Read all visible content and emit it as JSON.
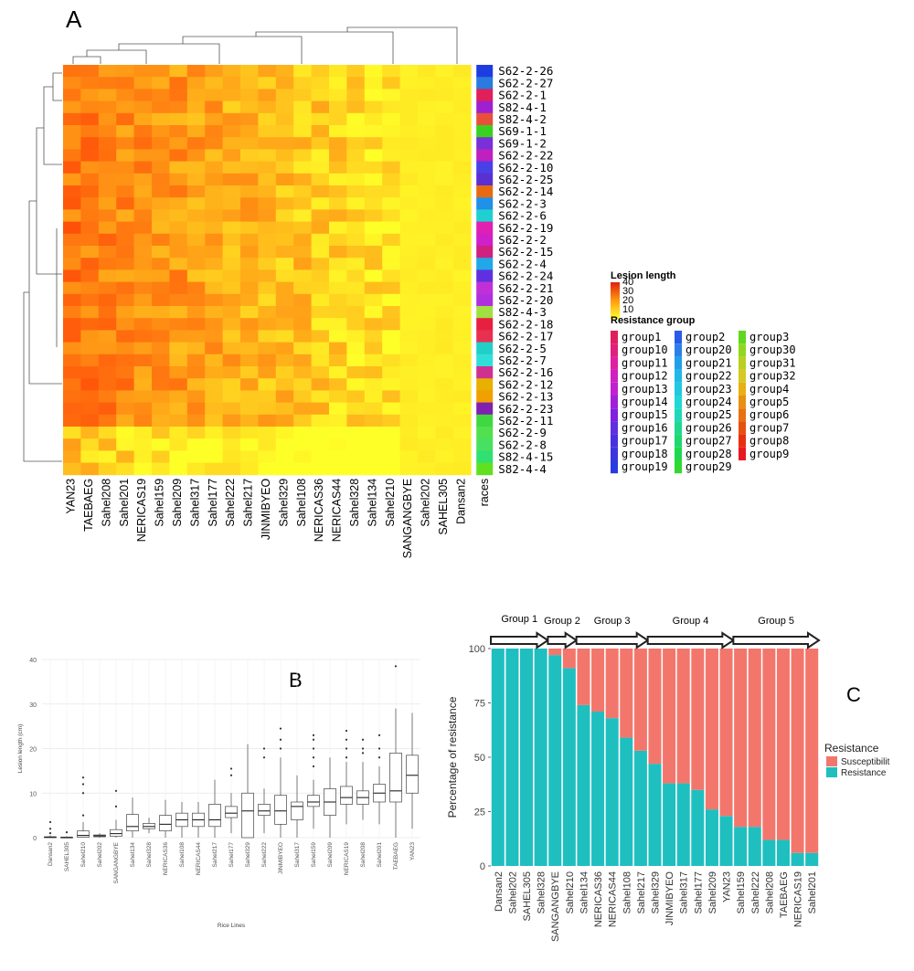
{
  "panels": {
    "a_label": "A",
    "b_label": "B",
    "c_label": "C"
  },
  "chart_data": [
    {
      "type": "heatmap",
      "panel": "A",
      "x_categories": [
        "YAN23",
        "TAEBAEG",
        "Sahel208",
        "Sahel201",
        "NERICAS19",
        "Sahel159",
        "Sahel209",
        "Sahel317",
        "Sahel177",
        "Sahel222",
        "Sahel217",
        "JINMIBYEO",
        "Sahel329",
        "Sahel108",
        "NERICAS36",
        "NERICAS44",
        "Sahel328",
        "Sahel134",
        "Sahel210",
        "SANGANGBYE",
        "Sahel202",
        "SAHEL305",
        "Dansan2"
      ],
      "extra_column_label": "races",
      "y_categories": [
        "S62-2-26",
        "S62-2-27",
        "S62-2-1",
        "S82-4-1",
        "S82-4-2",
        "S69-1-1",
        "S69-1-2",
        "S62-2-22",
        "S62-2-10",
        "S62-2-25",
        "S62-2-14",
        "S62-2-3",
        "S62-2-6",
        "S62-2-19",
        "S62-2-2",
        "S62-2-15",
        "S62-2-4",
        "S62-2-24",
        "S62-2-21",
        "S62-2-20",
        "S82-4-3",
        "S62-2-18",
        "S62-2-17",
        "S62-2-5",
        "S62-2-7",
        "S62-2-16",
        "S62-2-12",
        "S62-2-13",
        "S62-2-23",
        "S62-2-11",
        "S62-2-9",
        "S62-2-8",
        "S82-4-15",
        "S82-4-4"
      ],
      "race_colors": [
        "#1d3de0",
        "#2a7be0",
        "#e0205a",
        "#a020d0",
        "#e8503a",
        "#3ad020",
        "#7a30d8",
        "#c020c0",
        "#4a40e8",
        "#5a30d0",
        "#e86a10",
        "#2090e8",
        "#20d0d0",
        "#e020b0",
        "#d020c8",
        "#d02080",
        "#20a8e8",
        "#6030e0",
        "#c030d8",
        "#b030e0",
        "#a0e040",
        "#e82040",
        "#e83050",
        "#20d0c8",
        "#30e0d8",
        "#d03090",
        "#e8b000",
        "#f0a000",
        "#8020b0",
        "#40d840",
        "#50e050",
        "#48e060",
        "#30e070",
        "#60e020"
      ],
      "legend": {
        "lesion_title": "Lesion length",
        "lesion_ticks": [
          "40",
          "30",
          "20",
          "10"
        ],
        "group_title": "Resistance group",
        "groups": [
          {
            "name": "group1",
            "color": "#e0205a"
          },
          {
            "name": "group10",
            "color": "#e0207a"
          },
          {
            "name": "group11",
            "color": "#e020a0"
          },
          {
            "name": "group12",
            "color": "#d020c0"
          },
          {
            "name": "group13",
            "color": "#c020d0"
          },
          {
            "name": "group14",
            "color": "#a020d8"
          },
          {
            "name": "group15",
            "color": "#8020e0"
          },
          {
            "name": "group16",
            "color": "#6030e0"
          },
          {
            "name": "group17",
            "color": "#4a30e0"
          },
          {
            "name": "group18",
            "color": "#3a35e0"
          },
          {
            "name": "group19",
            "color": "#2a3ae0"
          },
          {
            "name": "group2",
            "color": "#2a5ae8"
          },
          {
            "name": "group20",
            "color": "#2a80e8"
          },
          {
            "name": "group21",
            "color": "#20a0e8"
          },
          {
            "name": "group22",
            "color": "#20b8e8"
          },
          {
            "name": "group23",
            "color": "#20c8e0"
          },
          {
            "name": "group24",
            "color": "#20d8d8"
          },
          {
            "name": "group25",
            "color": "#20d8b8"
          },
          {
            "name": "group26",
            "color": "#20d890"
          },
          {
            "name": "group27",
            "color": "#20d870"
          },
          {
            "name": "group28",
            "color": "#20d850"
          },
          {
            "name": "group29",
            "color": "#30d830"
          },
          {
            "name": "group3",
            "color": "#60d820"
          },
          {
            "name": "group30",
            "color": "#90d820"
          },
          {
            "name": "group31",
            "color": "#b8d020"
          },
          {
            "name": "group32",
            "color": "#d8c820"
          },
          {
            "name": "group4",
            "color": "#e8b010"
          },
          {
            "name": "group5",
            "color": "#e89010"
          },
          {
            "name": "group6",
            "color": "#e87010"
          },
          {
            "name": "group7",
            "color": "#e85010"
          },
          {
            "name": "group8",
            "color": "#e83010"
          },
          {
            "name": "group9",
            "color": "#e81a20"
          }
        ]
      }
    },
    {
      "type": "box",
      "panel": "B",
      "xlabel": "Rice Lines",
      "ylabel": "Lesion length (cm)",
      "ylim": [
        0,
        40
      ],
      "yticks": [
        0,
        10,
        20,
        30,
        40
      ],
      "categories": [
        "Dansan2",
        "SAHEL305",
        "Sahel210",
        "Sahel202",
        "SANGANGBYE",
        "Sahel134",
        "Sahel328",
        "NERICAS36",
        "Sahel108",
        "NERICAS44",
        "Sahel217",
        "Sahel177",
        "Sahel329",
        "Sahel222",
        "JINMIBYEO",
        "Sahel317",
        "Sahel159",
        "Sahel209",
        "NERICAS19",
        "Sahel208",
        "Sahel201",
        "TAEBAEG",
        "YAN23"
      ],
      "boxes": [
        {
          "q1": 0,
          "median": 0.1,
          "q3": 0.2,
          "wlo": 0,
          "whi": 0.5,
          "out": [
            1,
            2,
            3.5
          ]
        },
        {
          "q1": 0,
          "median": 0.05,
          "q3": 0.1,
          "wlo": 0,
          "whi": 0.3,
          "out": [
            1.2
          ]
        },
        {
          "q1": 0.1,
          "median": 0.5,
          "q3": 1.5,
          "wlo": 0,
          "whi": 3.5,
          "out": [
            5,
            10,
            12,
            13.5
          ]
        },
        {
          "q1": 0.2,
          "median": 0.4,
          "q3": 0.6,
          "wlo": 0,
          "whi": 1,
          "out": []
        },
        {
          "q1": 0.3,
          "median": 0.9,
          "q3": 1.8,
          "wlo": 0,
          "whi": 4,
          "out": [
            7,
            10.5
          ]
        },
        {
          "q1": 1.5,
          "median": 2.5,
          "q3": 5.2,
          "wlo": 0,
          "whi": 9,
          "out": []
        },
        {
          "q1": 2,
          "median": 2.5,
          "q3": 3.2,
          "wlo": 1,
          "whi": 4.5,
          "out": []
        },
        {
          "q1": 1.5,
          "median": 3,
          "q3": 5,
          "wlo": 0,
          "whi": 8.5,
          "out": []
        },
        {
          "q1": 2.5,
          "median": 4,
          "q3": 5.5,
          "wlo": 0,
          "whi": 8,
          "out": []
        },
        {
          "q1": 2.5,
          "median": 4,
          "q3": 5.5,
          "wlo": 0,
          "whi": 8,
          "out": []
        },
        {
          "q1": 2.5,
          "median": 4,
          "q3": 7.5,
          "wlo": 0,
          "whi": 13,
          "out": []
        },
        {
          "q1": 4.5,
          "median": 5.5,
          "q3": 7,
          "wlo": 1,
          "whi": 10,
          "out": [
            14,
            15.5
          ]
        },
        {
          "q1": 0,
          "median": 6,
          "q3": 10,
          "wlo": 0,
          "whi": 21,
          "out": []
        },
        {
          "q1": 5,
          "median": 6,
          "q3": 7.5,
          "wlo": 1,
          "whi": 11,
          "out": [
            18,
            20
          ]
        },
        {
          "q1": 3,
          "median": 6,
          "q3": 9.5,
          "wlo": 0,
          "whi": 18,
          "out": [
            20,
            22,
            24.5
          ]
        },
        {
          "q1": 4,
          "median": 7,
          "q3": 8,
          "wlo": 0,
          "whi": 14,
          "out": []
        },
        {
          "q1": 7,
          "median": 8,
          "q3": 9.5,
          "wlo": 2,
          "whi": 13,
          "out": [
            16,
            18,
            20,
            22,
            23
          ]
        },
        {
          "q1": 5,
          "median": 8,
          "q3": 11,
          "wlo": 0,
          "whi": 18,
          "out": []
        },
        {
          "q1": 7.5,
          "median": 9,
          "q3": 11.5,
          "wlo": 3,
          "whi": 17,
          "out": [
            18,
            20,
            22,
            24
          ]
        },
        {
          "q1": 7.5,
          "median": 9,
          "q3": 10.5,
          "wlo": 4,
          "whi": 17,
          "out": [
            19,
            20,
            22
          ]
        },
        {
          "q1": 8,
          "median": 10,
          "q3": 12,
          "wlo": 3,
          "whi": 16,
          "out": [
            18,
            20,
            23
          ]
        },
        {
          "q1": 8,
          "median": 10.5,
          "q3": 19,
          "wlo": 0,
          "whi": 29,
          "out": [
            38.5
          ]
        },
        {
          "q1": 10,
          "median": 14,
          "q3": 18.5,
          "wlo": 2,
          "whi": 28,
          "out": []
        }
      ]
    },
    {
      "type": "bar",
      "stacked": true,
      "panel": "C",
      "ylabel": "Percentage of resistance",
      "ylim": [
        0,
        100
      ],
      "yticks": [
        0,
        25,
        50,
        75,
        100
      ],
      "categories": [
        "Dansan2",
        "Sahel202",
        "SAHEL305",
        "Sahel328",
        "SANGANGBYE",
        "Sahel210",
        "Sahel134",
        "NERICAS36",
        "NERICAS44",
        "Sahel108",
        "Sahel217",
        "Sahel329",
        "JINMIBYEO",
        "Sahel317",
        "Sahel177",
        "Sahel209",
        "YAN23",
        "Sahel159",
        "Sahel222",
        "Sahel208",
        "TAEBAEG",
        "NERICAS19",
        "Sahel201"
      ],
      "series": [
        {
          "name": "Resistance",
          "color": "#1fbfc0",
          "values": [
            100,
            100,
            100,
            100,
            97,
            91,
            74,
            71,
            68,
            59,
            53,
            47,
            38,
            38,
            35,
            26,
            23,
            18,
            18,
            12,
            12,
            6,
            6
          ]
        },
        {
          "name": "Susceptibilit",
          "color": "#f3766c",
          "values": [
            0,
            0,
            0,
            0,
            3,
            9,
            26,
            29,
            32,
            41,
            47,
            53,
            62,
            62,
            65,
            74,
            77,
            82,
            82,
            88,
            88,
            94,
            94
          ]
        }
      ],
      "legend_title": "Resistance",
      "groups": [
        {
          "label": "Group 1",
          "from": 0,
          "to": 3
        },
        {
          "label": "Group 2",
          "from": 4,
          "to": 5
        },
        {
          "label": "Group 3",
          "from": 6,
          "to": 10
        },
        {
          "label": "Group 4",
          "from": 11,
          "to": 16
        },
        {
          "label": "Group 5",
          "from": 17,
          "to": 22
        }
      ]
    }
  ]
}
